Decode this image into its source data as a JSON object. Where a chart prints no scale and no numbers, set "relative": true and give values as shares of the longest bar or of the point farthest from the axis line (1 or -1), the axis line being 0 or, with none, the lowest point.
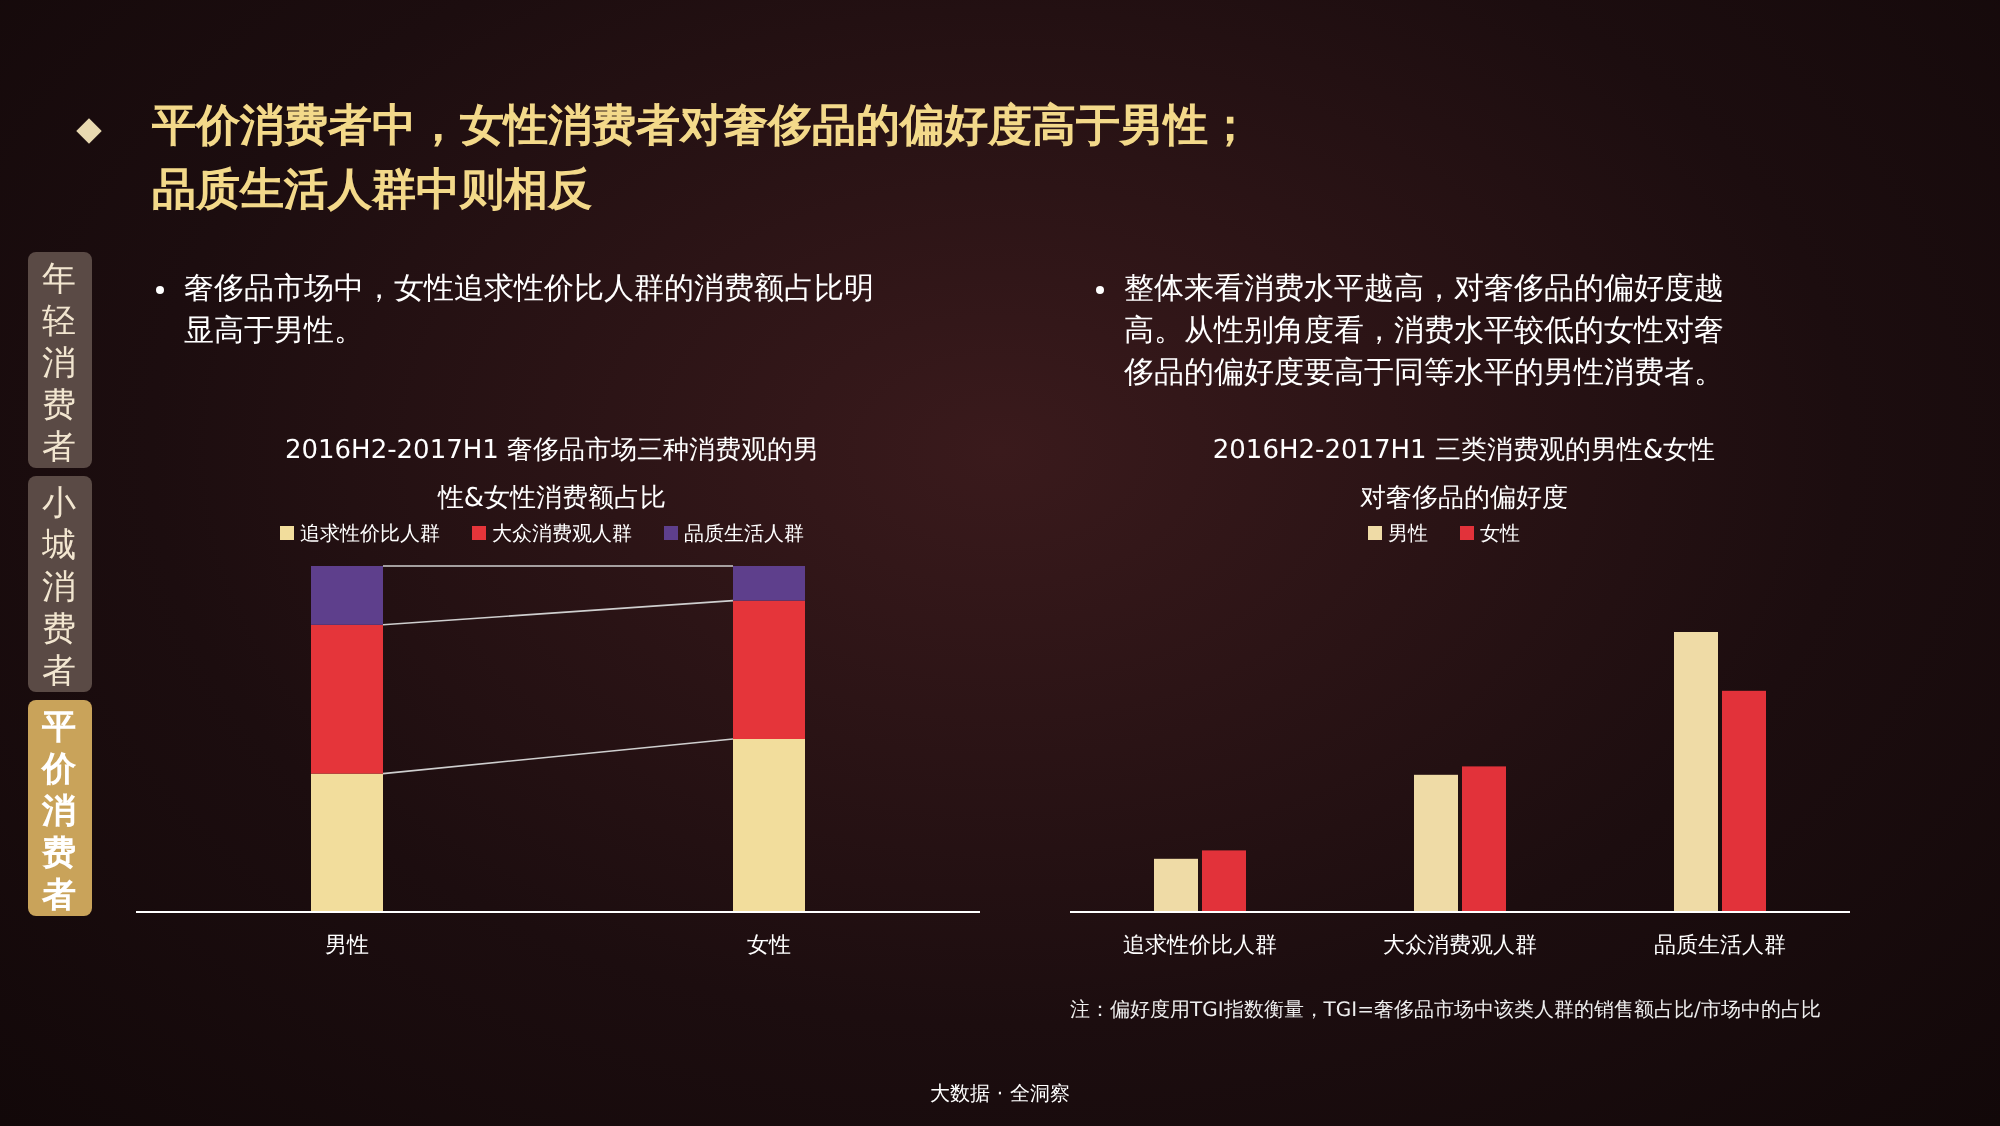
{
  "chart_data": [
    {
      "type": "bar",
      "title": "2016H2-2017H1 奢侈品市场三种消费观的男性&女性消费额占比",
      "stacked": true,
      "relative": true,
      "legend": "top",
      "categories": [
        "男性",
        "女性"
      ],
      "series": [
        {
          "name": "追求性价比人群",
          "color": "#f2dd9c",
          "values": [
            0.4,
            0.5
          ]
        },
        {
          "name": "大众消费观人群",
          "color": "#e5353a",
          "values": [
            0.43,
            0.4
          ]
        },
        {
          "name": "品质生活人群",
          "color": "#5e3f8c",
          "values": [
            0.17,
            0.1
          ]
        }
      ],
      "annotations": [
        "平价消费者中，女性消费者对奢侈品的偏好度高于男性；",
        "品质生活人群中则相反",
        "年轻消费者",
        "小城消费者",
        "平价消费者",
        "奢侈品市场中，女性追求性价比人群的消费额占比明显高于男性。",
        "大数据 · 全洞察"
      ]
    },
    {
      "type": "bar",
      "title": "2016H2-2017H1 三类消费观的男性&女性对奢侈品的偏好度",
      "relative": true,
      "legend": "top",
      "categories": [
        "追求性价比人群",
        "大众消费观人群",
        "品质生活人群"
      ],
      "series": [
        {
          "name": "男性",
          "color": "#efdba6",
          "values": [
            0.19,
            0.49,
            1.0
          ]
        },
        {
          "name": "女性",
          "color": "#e2323a",
          "values": [
            0.22,
            0.52,
            0.79
          ]
        }
      ],
      "annotations": [
        "整体来看消费水平越高，对奢侈品的偏好度越高。从性别角度看，消费水平较低的女性对奢侈品的偏好度要高于同等水平的男性消费者。",
        "注：偏好度用TGI指数衡量，TGI=奢侈品市场中该类人群的销售额占比/市场中的占比"
      ]
    }
  ]
}
